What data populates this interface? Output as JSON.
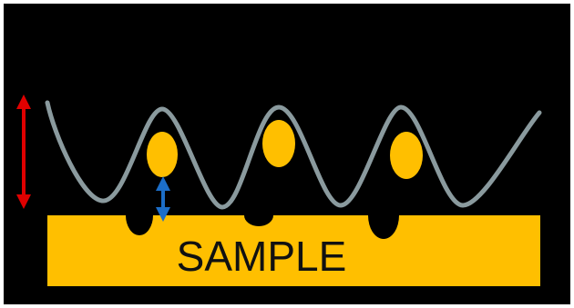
{
  "diagram": {
    "sample_label": "SAMPLE",
    "colors": {
      "background": "#000000",
      "sample": "#FFBF00",
      "wave": "#8A9A9E",
      "particle": "#FFBF00",
      "pit": "#000000",
      "amplitude_arrow": "#E00000",
      "gap_arrow": "#1C6EC8"
    },
    "elements": {
      "wave": "standing-wave",
      "particles": 3,
      "pits": 3
    }
  }
}
